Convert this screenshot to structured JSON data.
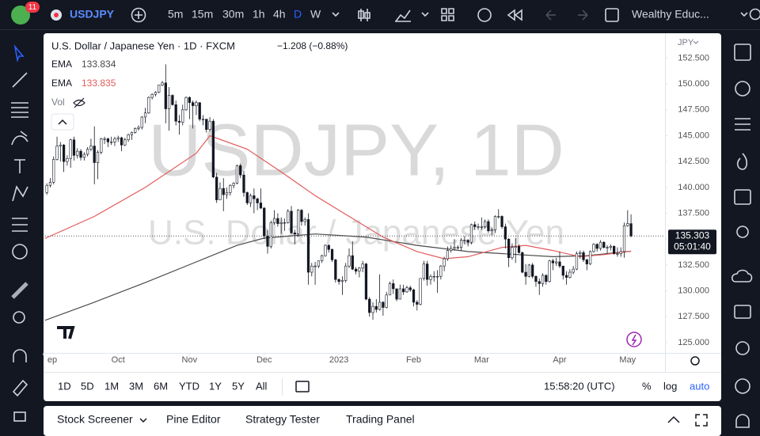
{
  "toolbar": {
    "badge": "11",
    "symbol": "USDJPY",
    "intervals": [
      "5m",
      "15m",
      "30m",
      "1h",
      "4h",
      "D",
      "W"
    ],
    "account": "Wealthy Educ..."
  },
  "chart_data": {
    "type": "candlestick",
    "title": "U.S. Dollar / Japanese Yen · 1D · FXCM",
    "change": "−1.208 (−0.88%)",
    "currency": "JPY",
    "watermark": "USDJPY, 1D",
    "watermark_subtitle": "U.S. Dollar / Japanese Yen",
    "volume_label": "Vol",
    "countdown": "05:01:40",
    "up_color": "#ffffff",
    "down_color": "#131722",
    "grid": false,
    "candles": [
      [
        139.0,
        140.0,
        138.8,
        139.5
      ],
      [
        139.5,
        140.4,
        139.3,
        140.2
      ],
      [
        140.2,
        140.9,
        140.0,
        140.5
      ],
      [
        140.5,
        143.0,
        140.3,
        142.7
      ],
      [
        142.7,
        144.9,
        142.6,
        144.0
      ],
      [
        144.0,
        144.4,
        142.5,
        144.1
      ],
      [
        144.1,
        144.2,
        141.5,
        142.5
      ],
      [
        142.5,
        143.1,
        142.1,
        142.8
      ],
      [
        142.8,
        144.7,
        141.9,
        144.6
      ],
      [
        144.6,
        144.9,
        142.6,
        143.1
      ],
      [
        143.1,
        143.8,
        142.8,
        143.5
      ],
      [
        143.5,
        143.7,
        142.6,
        142.9
      ],
      [
        142.9,
        143.4,
        142.6,
        143.2
      ],
      [
        143.2,
        143.9,
        143.0,
        143.7
      ],
      [
        143.7,
        144.7,
        143.5,
        144.0
      ],
      [
        144.0,
        145.9,
        140.3,
        142.4
      ],
      [
        142.4,
        143.6,
        140.8,
        143.4
      ],
      [
        143.4,
        144.8,
        143.2,
        144.7
      ],
      [
        144.7,
        144.9,
        144.2,
        144.7
      ],
      [
        144.7,
        144.8,
        143.9,
        144.4
      ],
      [
        144.4,
        144.9,
        144.1,
        144.4
      ],
      [
        144.4,
        144.9,
        144.0,
        144.7
      ],
      [
        144.7,
        145.0,
        144.4,
        144.8
      ],
      [
        144.8,
        144.9,
        143.5,
        144.1
      ],
      [
        144.1,
        144.8,
        144.0,
        144.6
      ],
      [
        144.6,
        145.2,
        144.4,
        145.1
      ],
      [
        145.1,
        145.4,
        144.6,
        145.3
      ],
      [
        145.3,
        145.8,
        145.2,
        145.7
      ],
      [
        145.7,
        146.0,
        145.5,
        145.8
      ],
      [
        145.8,
        146.9,
        145.6,
        146.8
      ],
      [
        146.8,
        147.7,
        146.2,
        147.2
      ],
      [
        147.2,
        148.8,
        147.1,
        148.7
      ],
      [
        148.7,
        149.1,
        148.5,
        149.0
      ],
      [
        149.0,
        149.3,
        148.8,
        149.2
      ],
      [
        149.2,
        149.9,
        149.1,
        149.9
      ],
      [
        149.9,
        150.3,
        149.8,
        150.1
      ],
      [
        150.1,
        151.9,
        146.2,
        147.6
      ],
      [
        147.6,
        149.7,
        145.5,
        148.9
      ],
      [
        148.9,
        149.0,
        147.9,
        148.0
      ],
      [
        148.0,
        148.4,
        146.0,
        146.4
      ],
      [
        146.4,
        147.0,
        145.1,
        146.3
      ],
      [
        146.3,
        148.0,
        146.0,
        147.5
      ],
      [
        147.5,
        148.8,
        147.4,
        148.7
      ],
      [
        148.7,
        148.8,
        146.6,
        148.2
      ],
      [
        148.2,
        148.4,
        145.7,
        147.9
      ],
      [
        147.9,
        148.4,
        147.0,
        148.2
      ],
      [
        148.2,
        148.2,
        146.4,
        146.6
      ],
      [
        146.6,
        147.0,
        146.0,
        146.6
      ],
      [
        146.6,
        146.6,
        145.3,
        145.6
      ],
      [
        145.6,
        146.8,
        145.4,
        146.4
      ],
      [
        146.4,
        146.6,
        140.9,
        141.0
      ],
      [
        141.0,
        141.4,
        138.5,
        138.8
      ],
      [
        138.8,
        140.5,
        138.8,
        139.9
      ],
      [
        139.9,
        140.9,
        137.7,
        139.3
      ],
      [
        139.3,
        140.0,
        138.9,
        139.5
      ],
      [
        139.5,
        140.3,
        139.2,
        140.2
      ],
      [
        140.2,
        140.5,
        139.9,
        140.4
      ],
      [
        140.4,
        142.2,
        140.3,
        142.1
      ],
      [
        142.1,
        142.3,
        140.9,
        141.2
      ],
      [
        141.2,
        141.6,
        139.1,
        139.5
      ],
      [
        139.5,
        139.6,
        138.3,
        138.5
      ],
      [
        138.5,
        139.4,
        138.1,
        139.2
      ],
      [
        139.2,
        139.9,
        137.5,
        138.9
      ],
      [
        138.9,
        139.0,
        137.8,
        138.5
      ],
      [
        138.5,
        139.9,
        137.9,
        138.0
      ],
      [
        138.0,
        138.1,
        135.0,
        135.3
      ],
      [
        135.3,
        135.9,
        133.6,
        134.3
      ],
      [
        134.3,
        136.8,
        134.1,
        136.6
      ],
      [
        136.6,
        137.8,
        136.4,
        137.0
      ],
      [
        137.0,
        137.5,
        136.2,
        136.5
      ],
      [
        136.5,
        137.1,
        135.5,
        136.6
      ],
      [
        136.6,
        137.0,
        135.8,
        136.6
      ],
      [
        136.6,
        137.9,
        136.5,
        137.7
      ],
      [
        137.7,
        138.2,
        135.5,
        135.6
      ],
      [
        135.6,
        135.9,
        134.5,
        135.5
      ],
      [
        135.5,
        137.9,
        135.2,
        137.8
      ],
      [
        137.8,
        137.9,
        136.3,
        136.7
      ],
      [
        136.7,
        137.1,
        136.3,
        136.9
      ],
      [
        136.9,
        137.5,
        130.6,
        131.8
      ],
      [
        131.8,
        132.7,
        131.4,
        132.4
      ],
      [
        132.4,
        132.8,
        130.6,
        132.4
      ],
      [
        132.4,
        132.9,
        132.2,
        132.9
      ],
      [
        132.9,
        133.5,
        132.7,
        133.4
      ],
      [
        133.4,
        134.5,
        133.3,
        134.4
      ],
      [
        134.4,
        134.5,
        133.7,
        134.0
      ],
      [
        134.0,
        134.1,
        132.8,
        133.0
      ],
      [
        133.0,
        133.1,
        130.8,
        131.1
      ],
      [
        131.1,
        131.2,
        130.6,
        130.9
      ],
      [
        130.9,
        131.4,
        129.6,
        131.0
      ],
      [
        131.0,
        132.7,
        130.8,
        132.4
      ],
      [
        132.4,
        134.1,
        132.2,
        133.4
      ],
      [
        133.4,
        134.8,
        132.0,
        132.1
      ],
      [
        132.1,
        132.3,
        131.6,
        131.9
      ],
      [
        131.9,
        132.3,
        131.3,
        132.2
      ],
      [
        132.2,
        132.9,
        131.8,
        132.6
      ],
      [
        132.6,
        132.7,
        129.1,
        129.2
      ],
      [
        129.2,
        129.4,
        127.5,
        127.9
      ],
      [
        127.9,
        128.9,
        127.2,
        128.5
      ],
      [
        128.5,
        129.2,
        127.9,
        128.2
      ],
      [
        128.2,
        131.6,
        128.1,
        128.9
      ],
      [
        128.9,
        129.0,
        127.6,
        128.4
      ],
      [
        128.4,
        129.9,
        128.3,
        129.6
      ],
      [
        129.6,
        130.9,
        129.6,
        130.7
      ],
      [
        130.7,
        131.1,
        129.7,
        130.2
      ],
      [
        130.2,
        130.2,
        129.0,
        129.2
      ],
      [
        129.2,
        130.6,
        129.2,
        130.2
      ],
      [
        130.2,
        130.6,
        129.6,
        129.9
      ],
      [
        129.9,
        130.5,
        129.8,
        130.3
      ],
      [
        130.3,
        130.5,
        129.9,
        130.1
      ],
      [
        130.1,
        130.2,
        128.5,
        128.9
      ],
      [
        128.9,
        129.1,
        128.1,
        128.7
      ],
      [
        128.7,
        131.2,
        128.6,
        131.2
      ],
      [
        131.2,
        132.9,
        131.0,
        132.6
      ],
      [
        132.6,
        132.9,
        130.5,
        131.1
      ],
      [
        131.1,
        131.6,
        130.6,
        131.4
      ],
      [
        131.4,
        131.9,
        130.9,
        131.4
      ],
      [
        131.4,
        132.0,
        129.8,
        131.4
      ],
      [
        131.4,
        132.5,
        131.1,
        132.4
      ],
      [
        132.4,
        133.3,
        131.9,
        133.1
      ],
      [
        133.1,
        134.3,
        132.9,
        133.9
      ],
      [
        133.9,
        134.4,
        133.7,
        134.1
      ],
      [
        134.1,
        135.0,
        133.9,
        134.2
      ],
      [
        134.2,
        134.4,
        134.0,
        134.2
      ],
      [
        134.2,
        135.1,
        133.9,
        134.9
      ],
      [
        134.9,
        135.3,
        134.5,
        134.9
      ],
      [
        134.9,
        135.0,
        134.3,
        134.7
      ],
      [
        134.7,
        136.5,
        134.5,
        136.4
      ],
      [
        136.4,
        136.7,
        135.9,
        136.2
      ],
      [
        136.2,
        136.5,
        135.9,
        136.2
      ],
      [
        136.2,
        137.1,
        135.9,
        136.2
      ],
      [
        136.2,
        136.9,
        136.0,
        136.7
      ],
      [
        136.7,
        136.9,
        135.6,
        135.8
      ],
      [
        135.8,
        136.1,
        135.4,
        135.9
      ],
      [
        135.9,
        137.3,
        135.6,
        137.2
      ],
      [
        137.2,
        137.9,
        137.0,
        137.2
      ],
      [
        137.2,
        137.3,
        136.0,
        136.2
      ],
      [
        136.2,
        136.5,
        134.1,
        135.0
      ],
      [
        135.0,
        135.1,
        132.3,
        133.2
      ],
      [
        133.2,
        134.6,
        133.0,
        134.2
      ],
      [
        134.2,
        135.1,
        132.7,
        134.3
      ],
      [
        134.3,
        134.5,
        133.6,
        133.7
      ],
      [
        133.7,
        133.8,
        131.7,
        131.8
      ],
      [
        131.8,
        132.6,
        130.6,
        131.4
      ],
      [
        131.4,
        132.6,
        131.3,
        132.5
      ],
      [
        132.5,
        132.7,
        131.2,
        131.4
      ],
      [
        131.4,
        131.5,
        130.4,
        130.9
      ],
      [
        130.9,
        131.2,
        129.6,
        130.7
      ],
      [
        130.7,
        131.7,
        130.4,
        131.5
      ],
      [
        131.5,
        131.6,
        130.6,
        130.9
      ],
      [
        130.9,
        133.0,
        130.8,
        132.9
      ],
      [
        132.9,
        133.1,
        132.0,
        132.7
      ],
      [
        132.7,
        133.2,
        132.4,
        132.8
      ],
      [
        132.8,
        133.8,
        132.2,
        132.4
      ],
      [
        132.4,
        132.4,
        131.1,
        131.5
      ],
      [
        131.5,
        131.9,
        130.6,
        131.3
      ],
      [
        131.3,
        132.1,
        131.2,
        131.8
      ],
      [
        131.8,
        132.4,
        131.6,
        132.1
      ],
      [
        132.1,
        133.8,
        132.0,
        133.6
      ],
      [
        133.6,
        133.9,
        133.1,
        133.7
      ],
      [
        133.7,
        133.9,
        132.8,
        133.0
      ],
      [
        133.0,
        133.1,
        132.0,
        132.6
      ],
      [
        132.6,
        133.9,
        132.5,
        133.8
      ],
      [
        133.8,
        134.6,
        133.7,
        134.5
      ],
      [
        134.5,
        134.6,
        133.8,
        134.1
      ],
      [
        134.1,
        134.9,
        133.9,
        134.7
      ],
      [
        134.7,
        134.8,
        134.1,
        134.2
      ],
      [
        134.2,
        134.4,
        133.6,
        134.2
      ],
      [
        134.2,
        134.5,
        133.9,
        134.3
      ],
      [
        134.3,
        134.4,
        133.5,
        133.6
      ],
      [
        133.6,
        134.2,
        133.3,
        133.6
      ],
      [
        133.6,
        134.2,
        133.3,
        133.8
      ],
      [
        133.8,
        136.6,
        133.2,
        136.3
      ],
      [
        136.3,
        137.8,
        136.2,
        136.5
      ],
      [
        136.5,
        137.4,
        135.2,
        135.303
      ]
    ],
    "series": [
      {
        "name": "EMA",
        "color": "#4a4a4a",
        "x": [
          0,
          15,
          30,
          45,
          57,
          65,
          80,
          95,
          110,
          125,
          140,
          150,
          160,
          173
        ],
        "values": [
          127.1,
          128.9,
          130.8,
          132.8,
          134.4,
          135.1,
          135.5,
          135.2,
          134.4,
          133.8,
          133.5,
          133.3,
          133.4,
          133.834
        ]
      },
      {
        "name": "EMA",
        "color": "#e35b5b",
        "x": [
          0,
          15,
          30,
          45,
          49,
          60,
          70,
          80,
          90,
          100,
          110,
          118,
          125,
          135,
          142,
          150,
          158,
          165,
          173
        ],
        "values": [
          135.0,
          137.2,
          140.0,
          143.3,
          145.0,
          143.7,
          141.5,
          139.2,
          137.2,
          135.2,
          133.8,
          133.1,
          133.3,
          134.2,
          134.4,
          133.9,
          133.3,
          133.5,
          133.835
        ]
      }
    ],
    "xlim": [
      0.5,
      183
    ],
    "xticks": [
      {
        "value": 0,
        "label": "ep"
      },
      {
        "value": 22,
        "label": "Oct"
      },
      {
        "value": 43,
        "label": "Nov"
      },
      {
        "value": 65,
        "label": "Dec"
      },
      {
        "value": 87,
        "label": "2023"
      },
      {
        "value": 109,
        "label": "Feb"
      },
      {
        "value": 129,
        "label": "Mar"
      },
      {
        "value": 152,
        "label": "Apr"
      },
      {
        "value": 172,
        "label": "May"
      }
    ],
    "ylim": [
      124.0,
      154.6
    ],
    "yticks": [
      {
        "value": 125,
        "label": "125.000"
      },
      {
        "value": 127.5,
        "label": "127.500"
      },
      {
        "value": 130,
        "label": "130.000"
      },
      {
        "value": 132.5,
        "label": "132.500"
      },
      {
        "value": 135,
        "label": "135.000"
      },
      {
        "value": 137.5,
        "label": "137.500"
      },
      {
        "value": 140,
        "label": "140.000"
      },
      {
        "value": 142.5,
        "label": "142.500"
      },
      {
        "value": 145,
        "label": "145.000"
      },
      {
        "value": 147.5,
        "label": "147.500"
      },
      {
        "value": 150,
        "label": "150.000"
      },
      {
        "value": 152.5,
        "label": "152.500"
      }
    ]
  },
  "range_bar": {
    "ranges": [
      "1D",
      "5D",
      "1M",
      "3M",
      "6M",
      "YTD",
      "1Y",
      "5Y",
      "All"
    ],
    "clock": "15:58:20 (UTC)",
    "percent": "%",
    "log": "log",
    "auto": "auto"
  },
  "bottom_panel": {
    "tabs": [
      "Stock Screener",
      "Pine Editor",
      "Strategy Tester",
      "Trading Panel"
    ]
  }
}
